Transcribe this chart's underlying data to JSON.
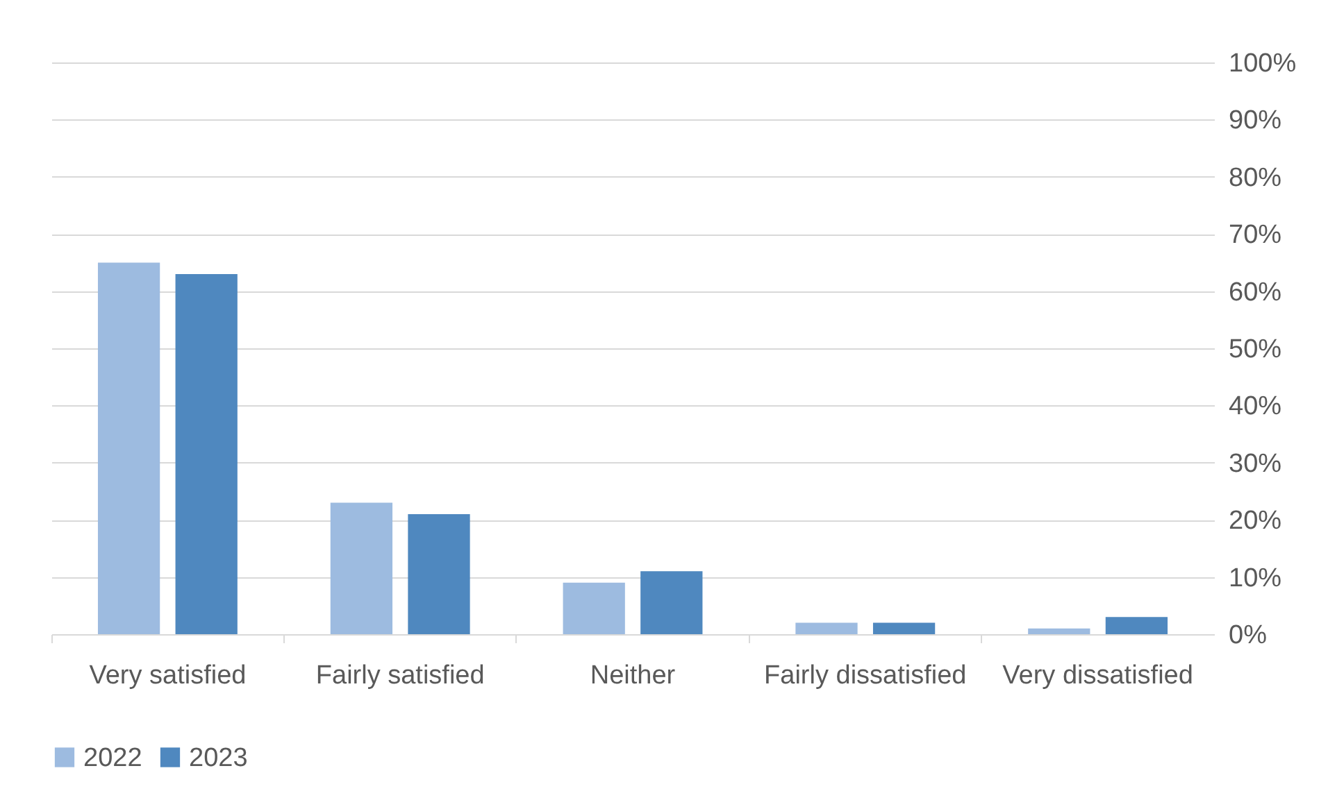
{
  "chart_data": {
    "type": "bar",
    "categories": [
      "Very satisfied",
      "Fairly satisfied",
      "Neither",
      "Fairly dissatisfied",
      "Very dissatisfied"
    ],
    "series": [
      {
        "name": "2022",
        "color": "#9dbbe0",
        "values": [
          65,
          23,
          9,
          2,
          1
        ]
      },
      {
        "name": "2023",
        "color": "#4f88bf",
        "values": [
          63,
          21,
          11,
          2,
          3
        ]
      }
    ],
    "ylim": [
      0,
      100
    ],
    "yticks": [
      {
        "value": 0,
        "label": "0%"
      },
      {
        "value": 10,
        "label": "10%"
      },
      {
        "value": 20,
        "label": "20%"
      },
      {
        "value": 30,
        "label": "30%"
      },
      {
        "value": 40,
        "label": "40%"
      },
      {
        "value": 50,
        "label": "50%"
      },
      {
        "value": 60,
        "label": "60%"
      },
      {
        "value": 70,
        "label": "70%"
      },
      {
        "value": 80,
        "label": "80%"
      },
      {
        "value": 90,
        "label": "90%"
      },
      {
        "value": 100,
        "label": "100%"
      }
    ],
    "grid": "y",
    "legend": "bottom"
  }
}
